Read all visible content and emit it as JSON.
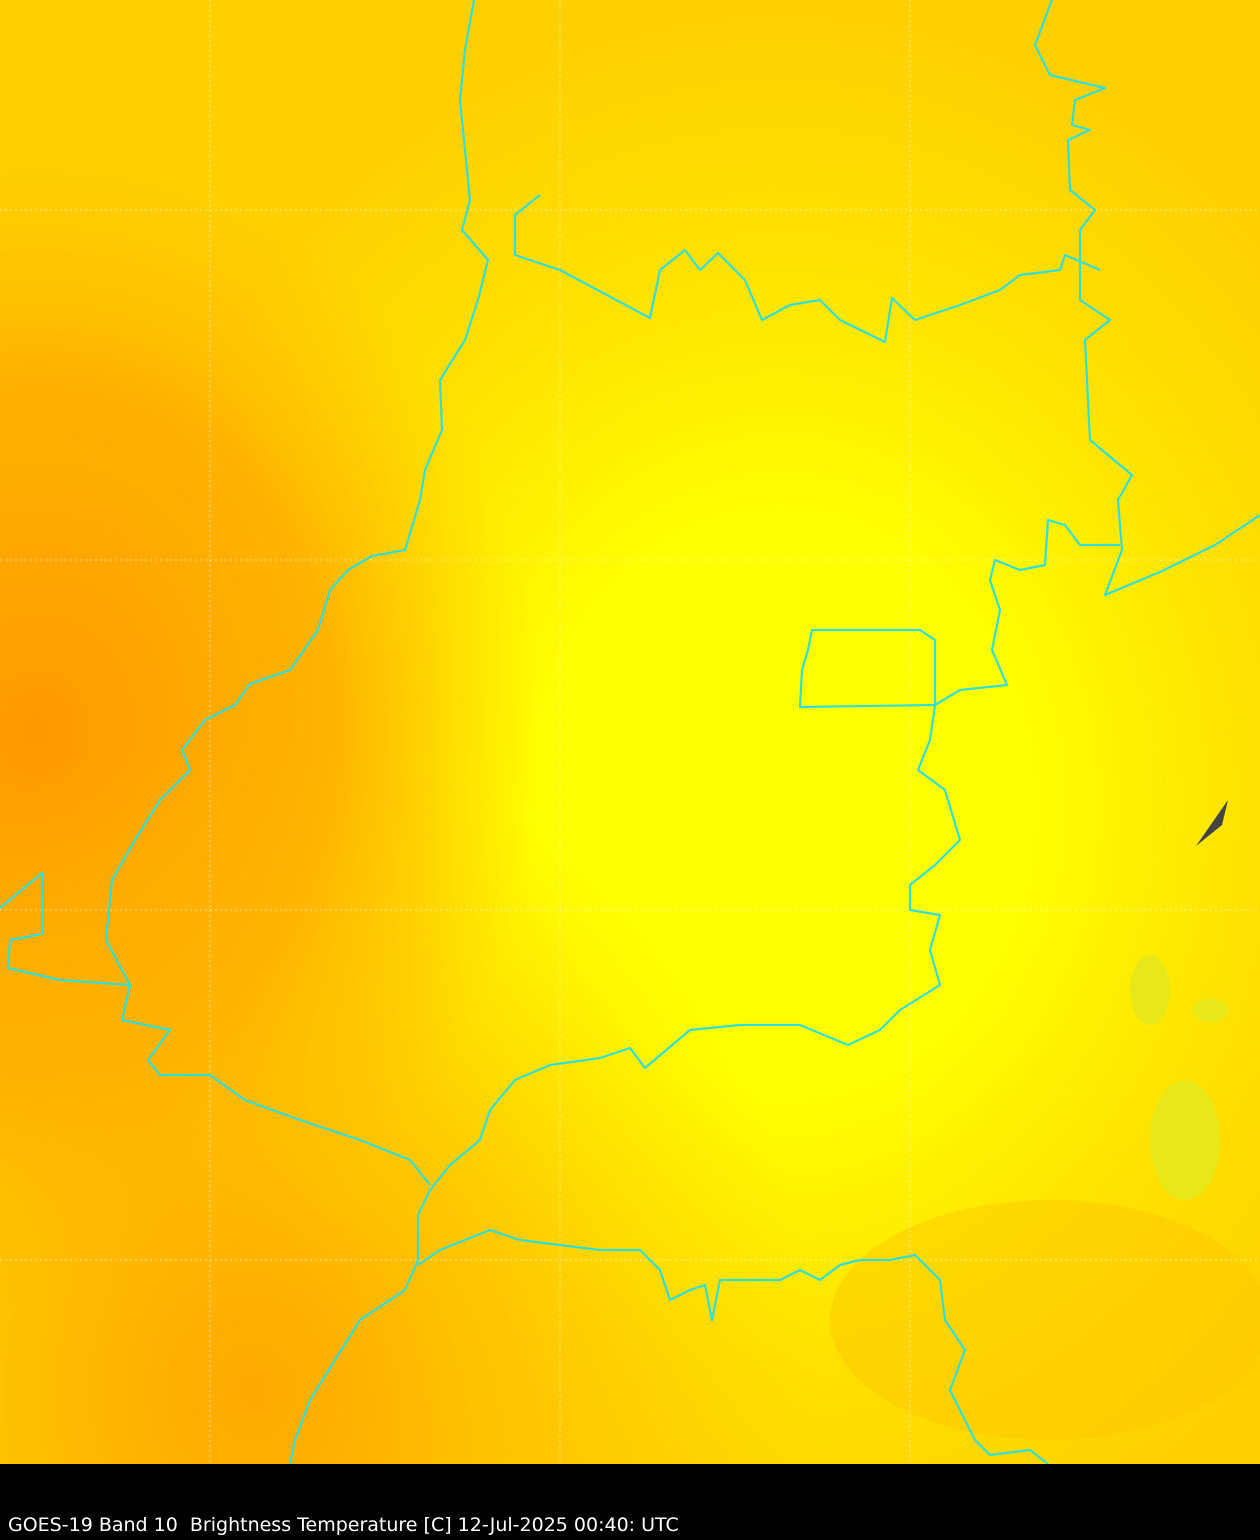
{
  "caption": "GOES-19 Band 10  Brightness Temperature [C] 12-Jul-2025 00:40: UTC",
  "map": {
    "satellite": "GOES-19",
    "band": "Band 10",
    "product": "Brightness Temperature [C]",
    "colors": {
      "warm_core": "#ffff00",
      "mid": "#ffd700",
      "cool_edge": "#ffa000",
      "borders": "#30e0d8",
      "gridlines": "#ffffff",
      "cloud_patch": "#e8e818"
    }
  }
}
